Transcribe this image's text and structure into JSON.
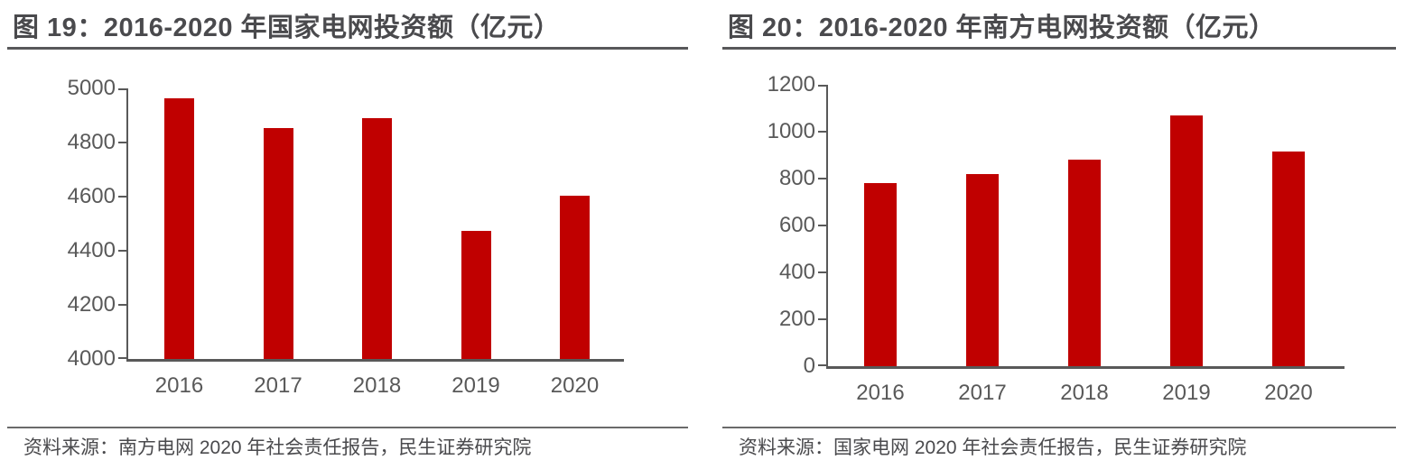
{
  "colors": {
    "bar": "#c00000",
    "axis": "#595959",
    "rule": "#58585a",
    "source_rule": "#6a6a6a",
    "title_text": "#4a4a4d",
    "tick_text": "#595959",
    "source_text": "#4a4a4d"
  },
  "panels": [
    {
      "source": "资料来源：南方电网 2020 年社会责任报告，民生证券研究院"
    },
    {
      "source": "资料来源：国家电网 2020 年社会责任报告，民生证券研究院"
    }
  ],
  "chart_data": [
    {
      "type": "bar",
      "title": "图 19：2016-2020 年国家电网投资额（亿元）",
      "categories": [
        "2016",
        "2017",
        "2018",
        "2019",
        "2020"
      ],
      "values": [
        4964,
        4854,
        4889,
        4473,
        4605
      ],
      "xlabel": "",
      "ylabel": "",
      "ylim": [
        4000,
        5000
      ],
      "yticks": [
        4000,
        4200,
        4400,
        4600,
        4800,
        5000
      ],
      "bar_color": "#c00000",
      "grid": false,
      "legend": "none"
    },
    {
      "type": "bar",
      "title": "图 20：2016-2020 年南方电网投资额（亿元）",
      "categories": [
        "2016",
        "2017",
        "2018",
        "2019",
        "2020"
      ],
      "values": [
        780,
        820,
        880,
        1070,
        915
      ],
      "xlabel": "",
      "ylabel": "",
      "ylim": [
        0,
        1200
      ],
      "yticks": [
        0,
        200,
        400,
        600,
        800,
        1000,
        1200
      ],
      "bar_color": "#c00000",
      "grid": false,
      "legend": "none"
    }
  ]
}
